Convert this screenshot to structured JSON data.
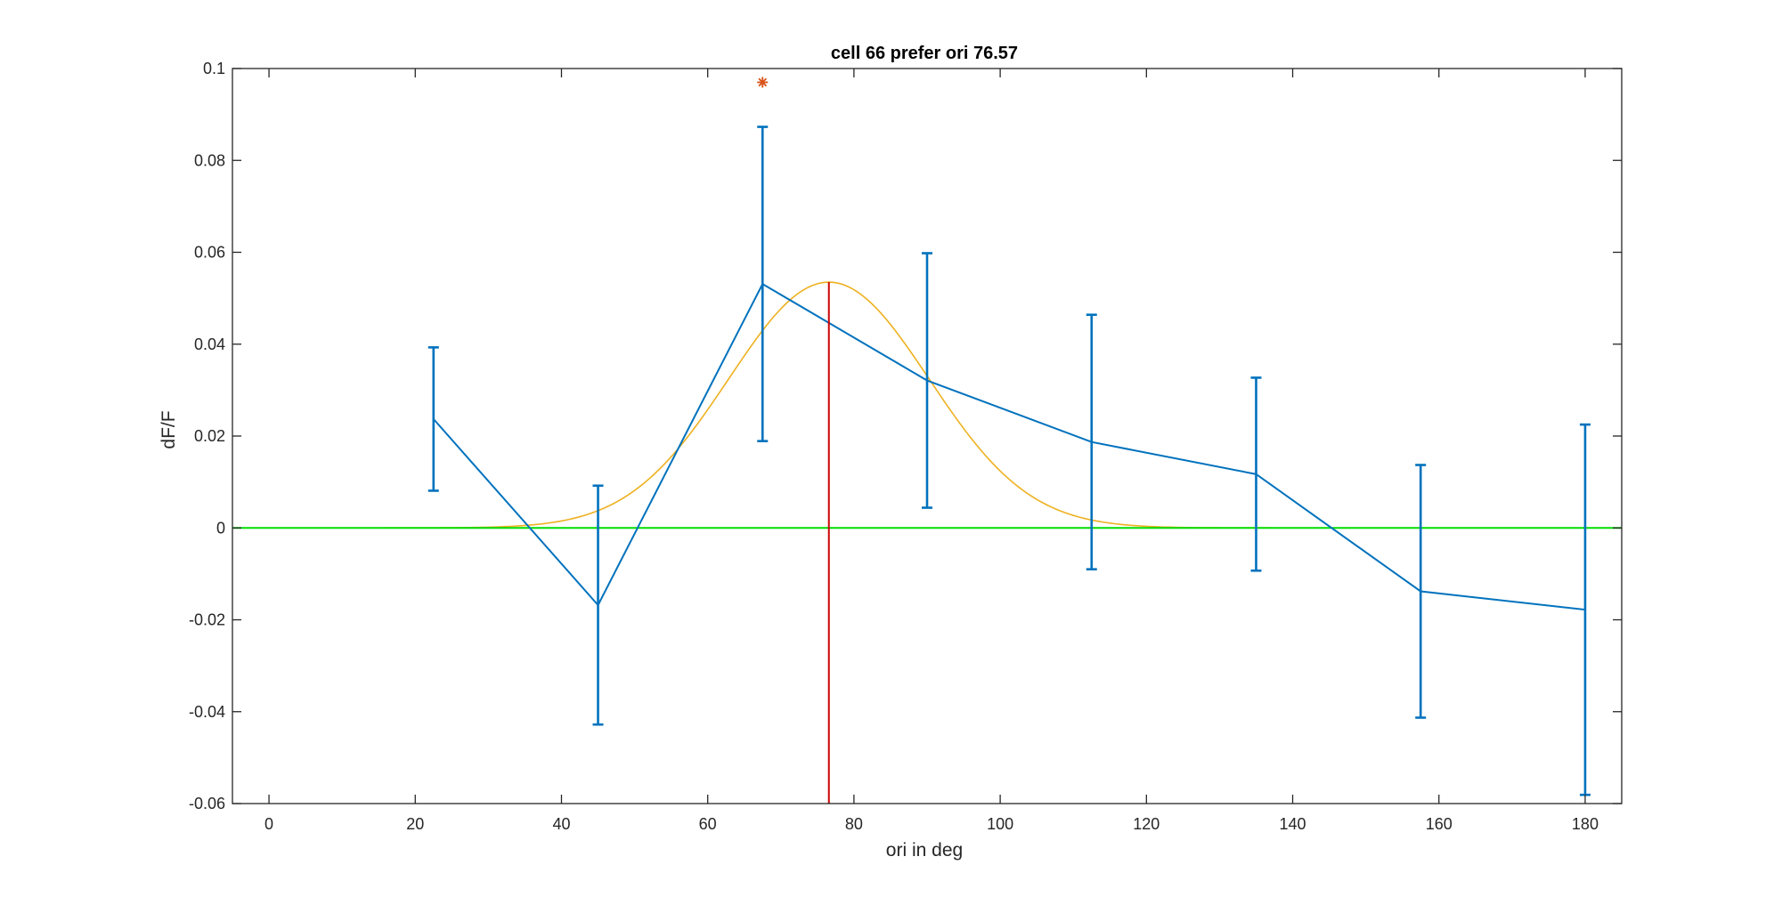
{
  "chart_data": {
    "type": "line",
    "title": "cell 66 prefer ori 76.57",
    "xlabel": "ori in deg",
    "ylabel": "dF/F",
    "xlim": [
      -5,
      185
    ],
    "ylim": [
      -0.06,
      0.1
    ],
    "xticks": [
      0,
      20,
      40,
      60,
      80,
      100,
      120,
      140,
      160,
      180
    ],
    "yticks": [
      -0.06,
      -0.04,
      -0.02,
      0,
      0.02,
      0.04,
      0.06,
      0.08,
      0.1
    ],
    "xtick_labels": [
      "0",
      "20",
      "40",
      "60",
      "80",
      "100",
      "120",
      "140",
      "160",
      "180"
    ],
    "ytick_labels": [
      "-0.06",
      "-0.04",
      "-0.02",
      "0",
      "0.02",
      "0.04",
      "0.06",
      "0.08",
      "0.1"
    ],
    "grid": false,
    "series": [
      {
        "kind": "errorbar",
        "color": "#0072BD",
        "x": [
          22.5,
          45,
          67.5,
          90,
          112.5,
          135,
          157.5,
          180
        ],
        "y": [
          0.0237,
          -0.0168,
          0.0531,
          0.0321,
          0.0187,
          0.0117,
          -0.0138,
          -0.0178
        ],
        "err": [
          0.0156,
          0.026,
          0.0342,
          0.0277,
          0.0277,
          0.021,
          0.0275,
          0.0403
        ]
      },
      {
        "kind": "gaussian-fit",
        "color": "#EDB120",
        "x_range": [
          0,
          179
        ],
        "amplitude": 0.0535,
        "center": 76.57,
        "sigma": 13.7
      },
      {
        "kind": "hline",
        "color": "#00DD00",
        "y": 0
      },
      {
        "kind": "vline",
        "color": "#CC0000",
        "x": 76.57,
        "y_range": [
          -0.06,
          0.0535
        ]
      },
      {
        "kind": "marker",
        "color": "#D95319",
        "symbol": "*",
        "x": 67.5,
        "y": 0.097
      }
    ]
  }
}
